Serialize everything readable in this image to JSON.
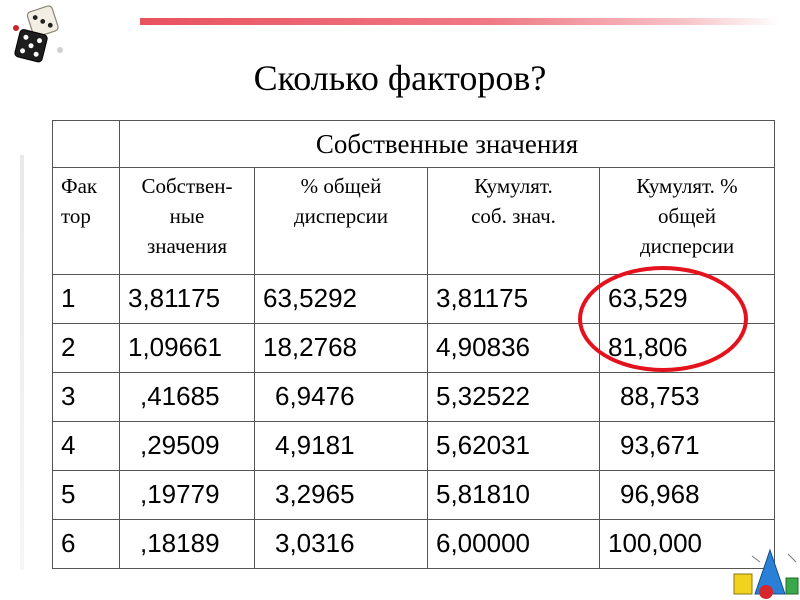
{
  "slide": {
    "title": "Сколько факторов?"
  },
  "table": {
    "caption": "Собственные  значения",
    "headers": [
      [
        "Фак",
        "тор"
      ],
      [
        "Собствен-",
        "ные",
        "значения"
      ],
      [
        "% общей",
        "дисперсии"
      ],
      [
        "Кумулят.",
        "соб. знач."
      ],
      [
        "Кумулят. %",
        "общей",
        "дисперсии"
      ]
    ],
    "rows": [
      [
        "1",
        "3,81175",
        "63,5292",
        "3,81175",
        "63,529"
      ],
      [
        "2",
        "1,09661",
        "18,2768",
        "4,90836",
        "81,806"
      ],
      [
        "3",
        ",41685",
        "6,9476",
        "5,32522",
        "88,753"
      ],
      [
        "4",
        ",29509",
        "4,9181",
        "5,62031",
        "93,671"
      ],
      [
        "5",
        ",19779",
        "3,2965",
        "5,81810",
        "96,968"
      ],
      [
        "6",
        ",18189",
        "3,0316",
        "6,00000",
        "100,000"
      ]
    ]
  },
  "highlight": {
    "color": "#e3121c"
  },
  "colors": {
    "accent_bar": "#e8525f"
  },
  "icons": {
    "top_left": "dice-icon",
    "bottom_right": "geometric-shapes-icon"
  }
}
